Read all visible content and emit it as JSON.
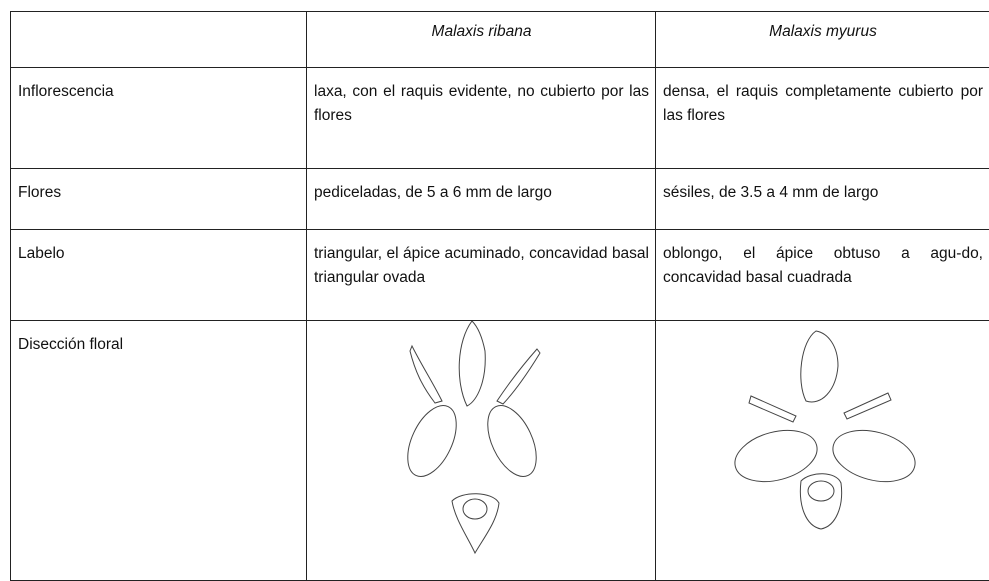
{
  "table": {
    "columns": [
      "Malaxis ribana",
      "Malaxis myurus"
    ],
    "rows": [
      {
        "label": "Inflorescencia",
        "cells": [
          "laxa, con el raquis evidente, no cubierto por las flores",
          "densa, el raquis completamente cubierto por las flores"
        ]
      },
      {
        "label": "Flores",
        "cells": [
          "pediceladas, de 5 a 6 mm de largo",
          "sésiles, de 3.5 a 4 mm de largo"
        ]
      },
      {
        "label": "Labelo",
        "cells": [
          "triangular, el ápice acuminado, concavidad basal triangular ovada",
          "oblongo, el ápice obtuso a agu-do, concavidad basal cuadrada"
        ]
      },
      {
        "label": "Disección floral"
      }
    ]
  }
}
